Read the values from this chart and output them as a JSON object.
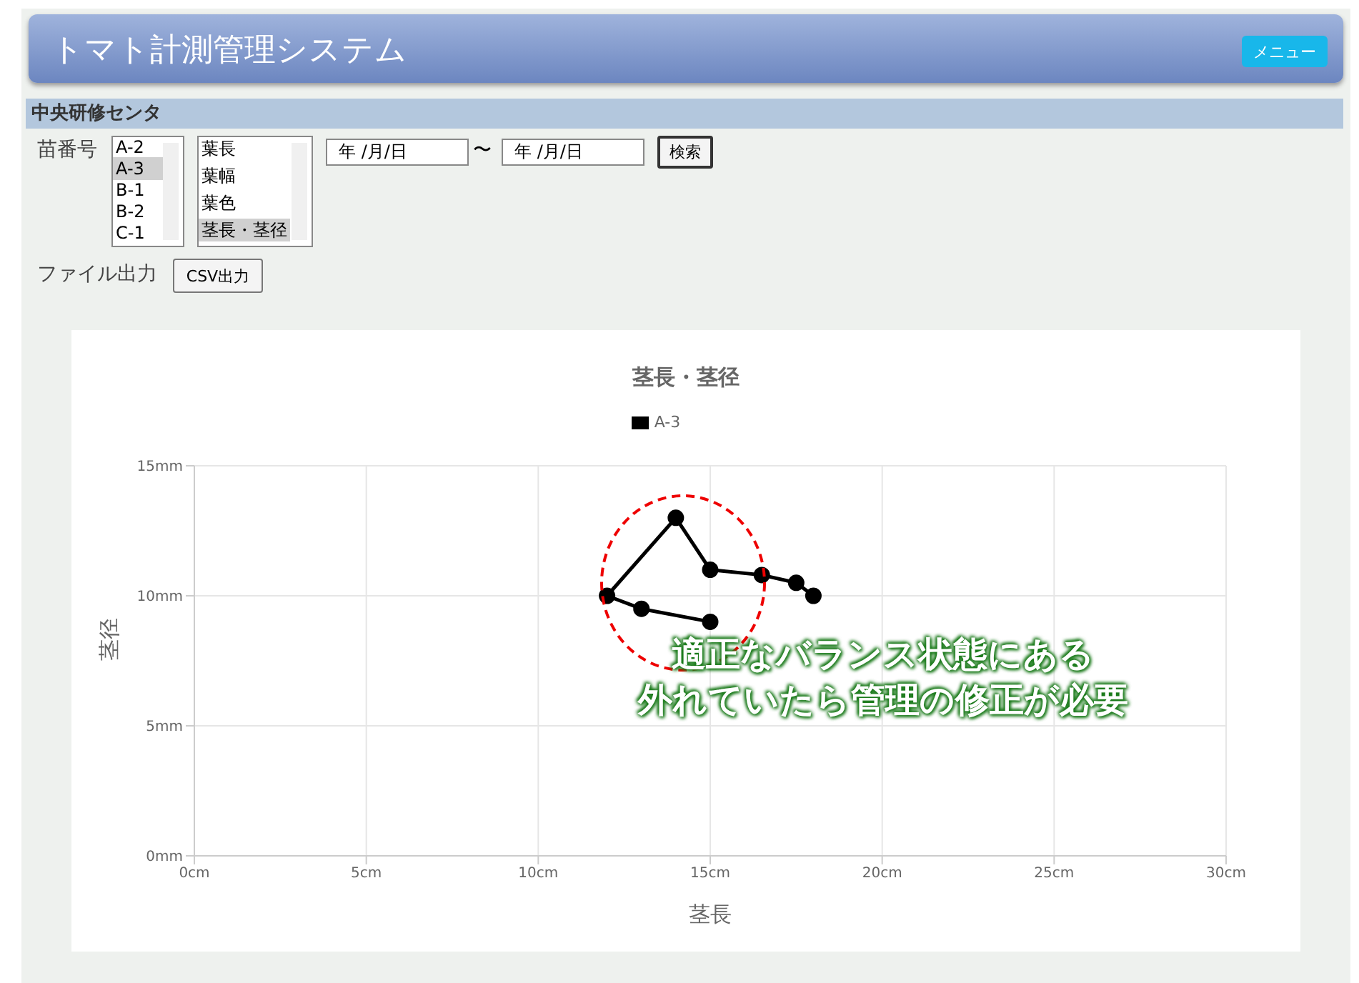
{
  "chart_data": {
    "type": "line",
    "title": "茎長・茎径",
    "xlabel": "茎長",
    "ylabel": "茎径",
    "x": [
      15,
      13,
      12,
      14,
      15,
      16.5,
      17.5,
      18
    ],
    "series": [
      {
        "name": "A-3",
        "color": "#000000",
        "values": [
          9,
          9.5,
          10,
          13,
          11,
          10.8,
          10.5,
          10
        ]
      }
    ],
    "xlim": [
      0,
      30
    ],
    "xticks": [
      {
        "value": 0,
        "label": "0cm"
      },
      {
        "value": 5,
        "label": "5cm"
      },
      {
        "value": 10,
        "label": "10cm"
      },
      {
        "value": 15,
        "label": "15cm"
      },
      {
        "value": 20,
        "label": "20cm"
      },
      {
        "value": 25,
        "label": "25cm"
      },
      {
        "value": 30,
        "label": "30cm"
      }
    ],
    "ylim": [
      0,
      15
    ],
    "yticks": [
      {
        "value": 0,
        "label": "0mm"
      },
      {
        "value": 5,
        "label": "5mm"
      },
      {
        "value": 10,
        "label": "10mm"
      },
      {
        "value": 15,
        "label": "15mm"
      }
    ],
    "grid": true,
    "legend": "top",
    "marker": "circle",
    "line_style": "solid",
    "annotations": [
      "トマト計測管理システム",
      "メニュー",
      "中央研修センタ",
      "苗番号",
      "A-2",
      "A-3",
      "B-1",
      "B-2",
      "C-1",
      "葉長",
      "葉幅",
      "葉色",
      "茎長・茎径",
      "年 /月/日",
      "〜",
      "年 /月/日",
      "検索",
      "ファイル出力",
      "CSV出力",
      "適正なバランス状態にある",
      "外れていたら管理の修正が必要"
    ]
  }
}
